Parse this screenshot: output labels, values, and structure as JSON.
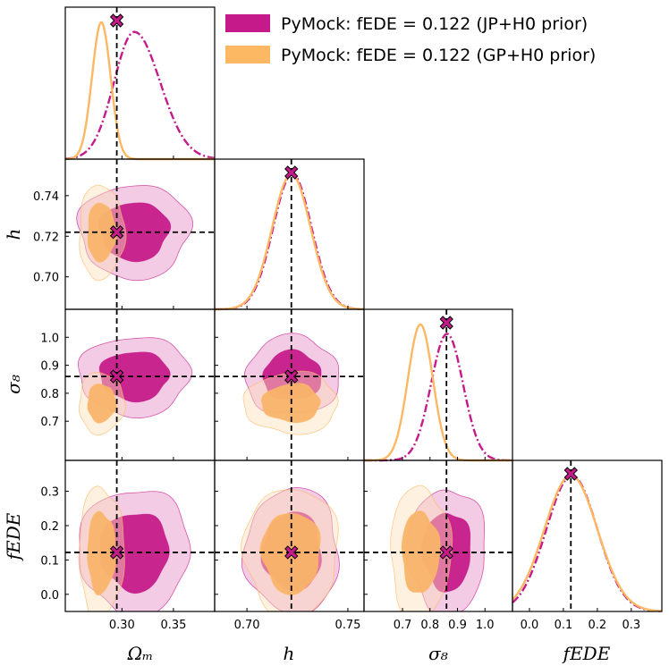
{
  "colors": {
    "jp": "#c51b8a",
    "gp": "#fdb863",
    "axis": "#000000",
    "marker": "#c51b8a"
  },
  "chart_data": {
    "type": "triangle-corner-plot",
    "parameters": [
      "Omega_m",
      "h",
      "sigma_8",
      "fEDE"
    ],
    "axis_labels": {
      "Omega_m": "Ωₘ",
      "h": "h",
      "sigma_8": "σ₈",
      "fEDE": "fEDE"
    },
    "ranges": {
      "Omega_m": [
        0.245,
        0.39
      ],
      "h": [
        0.684,
        0.758
      ],
      "sigma_8": [
        0.56,
        1.1
      ],
      "fEDE": [
        -0.05,
        0.39
      ]
    },
    "ticks": {
      "Omega_m": [
        {
          "v": 0.3,
          "label": "0.30"
        },
        {
          "v": 0.35,
          "label": "0.35"
        }
      ],
      "h": [
        {
          "v": 0.7,
          "label": "0.70"
        },
        {
          "v": 0.75,
          "label": "0.75"
        }
      ],
      "h_y": [
        {
          "v": 0.7,
          "label": "0.70"
        },
        {
          "v": 0.72,
          "label": "0.72"
        },
        {
          "v": 0.74,
          "label": "0.74"
        }
      ],
      "sigma_8": [
        {
          "v": 0.7,
          "label": "0.7"
        },
        {
          "v": 0.8,
          "label": "0.8"
        },
        {
          "v": 0.9,
          "label": "0.9"
        },
        {
          "v": 1.0,
          "label": "1.0"
        }
      ],
      "fEDE": [
        {
          "v": 0.0,
          "label": "0.0"
        },
        {
          "v": 0.1,
          "label": "0.1"
        },
        {
          "v": 0.2,
          "label": "0.2"
        },
        {
          "v": 0.3,
          "label": "0.3"
        }
      ]
    },
    "truth": {
      "Omega_m": 0.295,
      "h": 0.722,
      "sigma_8": 0.86,
      "fEDE": 0.122
    },
    "series": [
      {
        "name": "PyMock: fEDE = 0.122 (JP+H0 prior)",
        "style": "dash-dot",
        "means": {
          "Omega_m": 0.312,
          "h": 0.7225,
          "sigma_8": 0.862,
          "fEDE": 0.125
        },
        "sigmas": {
          "Omega_m": 0.022,
          "h": 0.0095,
          "sigma_8": 0.058,
          "fEDE": 0.075
        }
      },
      {
        "name": "PyMock: fEDE = 0.122 (GP+H0 prior)",
        "style": "solid",
        "means": {
          "Omega_m": 0.28,
          "h": 0.722,
          "sigma_8": 0.765,
          "fEDE": 0.122
        },
        "sigmas": {
          "Omega_m": 0.009,
          "h": 0.0095,
          "sigma_8": 0.045,
          "fEDE": 0.078
        }
      }
    ]
  }
}
